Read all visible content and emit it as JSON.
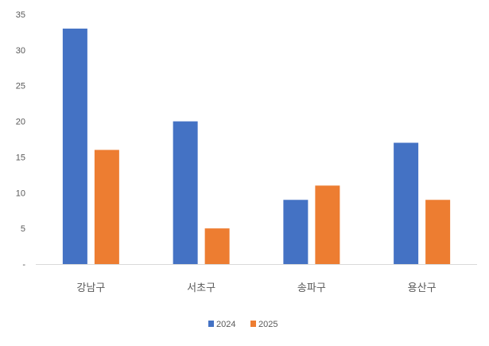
{
  "chart_data": {
    "type": "bar",
    "categories": [
      "강남구",
      "서초구",
      "송파구",
      "용산구"
    ],
    "series": [
      {
        "name": "2024",
        "values": [
          33,
          20,
          9,
          17
        ],
        "color": "#4472C4"
      },
      {
        "name": "2025",
        "values": [
          16,
          5,
          11,
          9
        ],
        "color": "#ED7D31"
      }
    ],
    "yticks": [
      "-",
      "5",
      "10",
      "15",
      "20",
      "25",
      "30",
      "35"
    ],
    "ylim": [
      0,
      35
    ],
    "grid": false,
    "legend": "bottom",
    "title": "",
    "xlabel": "",
    "ylabel": ""
  }
}
